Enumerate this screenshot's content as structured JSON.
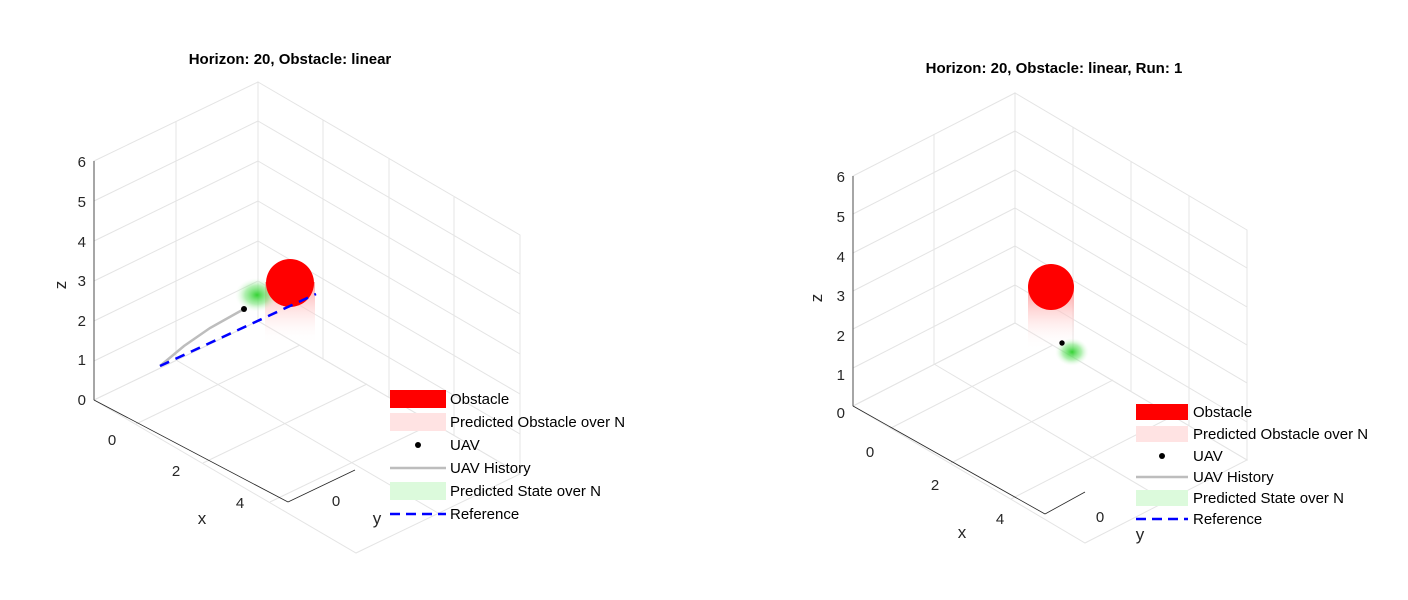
{
  "chart_data": [
    {
      "type": "scatter",
      "variant": "3d",
      "title": "Horizon: 20, Obstacle: linear",
      "xlabel": "x",
      "ylabel": "y",
      "zlabel": "z",
      "xticks": [
        "0",
        "2",
        "4"
      ],
      "yticks": [
        "0"
      ],
      "zticks": [
        "0",
        "1",
        "2",
        "3",
        "4",
        "5",
        "6"
      ],
      "xlim": [
        -1,
        5
      ],
      "ylim": [
        -1,
        1
      ],
      "zlim": [
        0,
        6
      ],
      "grid": true,
      "legend_position": "bottom-right",
      "legend": [
        "Obstacle",
        "Predicted Obstacle over N",
        "UAV",
        "UAV History",
        "Predicted State over N",
        "Reference"
      ],
      "series": {
        "obstacle": {
          "x": 4.6,
          "y": -1.0,
          "z": 2.4
        },
        "uav": {
          "x": 1.75,
          "y": 0.95,
          "z": 2.55
        },
        "uav_history": [
          [
            0.0,
            0.0,
            1.5
          ],
          [
            0.6,
            0.3,
            1.9
          ],
          [
            1.2,
            0.6,
            2.25
          ],
          [
            1.75,
            0.95,
            2.55
          ]
        ],
        "reference": [
          [
            0.0,
            0.0,
            1.5
          ],
          [
            3.5,
            -0.05,
            3.35
          ]
        ]
      }
    },
    {
      "type": "scatter",
      "variant": "3d",
      "title": "Horizon: 20, Obstacle: linear, Run: 1",
      "xlabel": "x",
      "ylabel": "y",
      "zlabel": "z",
      "xticks": [
        "0",
        "2",
        "4"
      ],
      "yticks": [
        "0"
      ],
      "zticks": [
        "0",
        "1",
        "2",
        "3",
        "4",
        "5",
        "6"
      ],
      "xlim": [
        -1,
        5
      ],
      "ylim": [
        -1,
        1
      ],
      "zlim": [
        0,
        6
      ],
      "grid": true,
      "legend_position": "bottom-right",
      "legend": [
        "Obstacle",
        "Predicted Obstacle over N",
        "UAV",
        "UAV History",
        "Predicted State over N",
        "Reference"
      ],
      "series": {
        "obstacle": {
          "x": 0.5,
          "y": -0.3,
          "z": 3.5
        },
        "uav": {
          "x": 3.6,
          "y": 0.9,
          "z": 2.2
        }
      }
    }
  ],
  "colors": {
    "obstacle": "#ff0000",
    "predicted_obstacle": "#ffe3e3",
    "uav": "#000000",
    "uav_history": "#bdbdbd",
    "predicted_state": "#dcfadc",
    "reference": "#0000ff"
  }
}
